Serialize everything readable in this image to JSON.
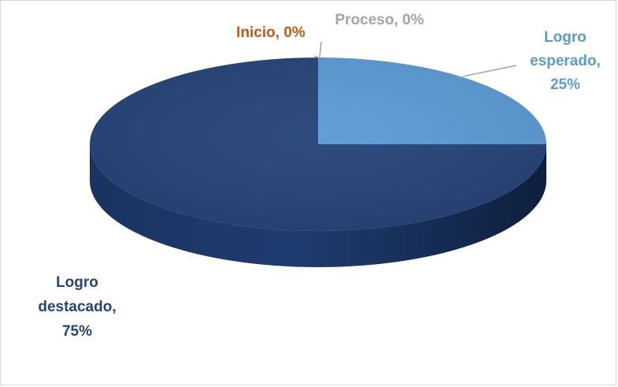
{
  "chart_data": {
    "type": "pie",
    "title": "",
    "categories": [
      "Inicio",
      "Proceso",
      "Logro esperado",
      "Logro destacado"
    ],
    "values": [
      0,
      0,
      25,
      75
    ],
    "unit": "%",
    "colors": [
      "#c55a11",
      "#a5a5a5",
      "#5b9bd5",
      "#264478"
    ],
    "data_labels": [
      {
        "lines": [
          "Inicio, 0%"
        ],
        "color": "#c55a11"
      },
      {
        "lines": [
          "Proceso, 0%"
        ],
        "color": "#a5a5a5"
      },
      {
        "lines": [
          "Logro",
          "esperado,",
          "25%"
        ],
        "color": "#5b9bd5"
      },
      {
        "lines": [
          "Logro",
          "destacado,",
          "75%"
        ],
        "color": "#264478"
      }
    ],
    "style": "3d",
    "legend": "none"
  }
}
